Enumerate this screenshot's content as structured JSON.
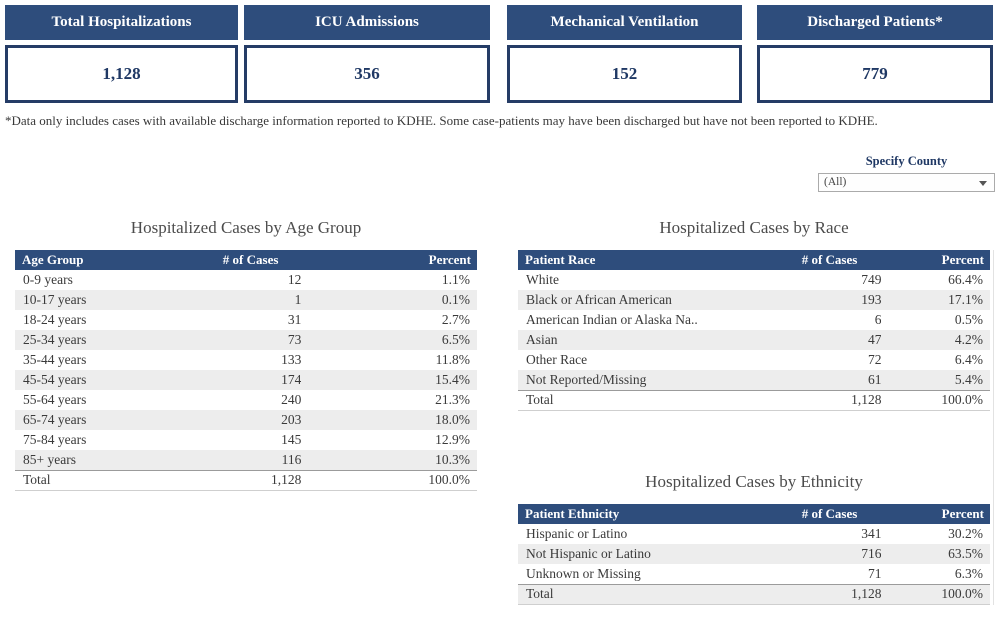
{
  "kpis": [
    {
      "label": "Total Hospitalizations",
      "value": "1,128"
    },
    {
      "label": "ICU Admissions",
      "value": "356"
    },
    {
      "label": "Mechanical Ventilation",
      "value": "152"
    },
    {
      "label": "Discharged Patients*",
      "value": "779"
    }
  ],
  "footnote": "*Data only includes cases with available discharge information reported to KDHE. Some case-patients may have been discharged but have not been reported to KDHE.",
  "county_filter": {
    "label": "Specify County",
    "selected": "(All)"
  },
  "tables": {
    "age": {
      "title": "Hospitalized Cases by Age Group",
      "columns": [
        "Age Group",
        "# of Cases",
        "Percent"
      ],
      "rows": [
        [
          "0-9 years",
          "12",
          "1.1%"
        ],
        [
          "10-17 years",
          "1",
          "0.1%"
        ],
        [
          "18-24 years",
          "31",
          "2.7%"
        ],
        [
          "25-34 years",
          "73",
          "6.5%"
        ],
        [
          "35-44 years",
          "133",
          "11.8%"
        ],
        [
          "45-54 years",
          "174",
          "15.4%"
        ],
        [
          "55-64 years",
          "240",
          "21.3%"
        ],
        [
          "65-74 years",
          "203",
          "18.0%"
        ],
        [
          "75-84 years",
          "145",
          "12.9%"
        ],
        [
          "85+ years",
          "116",
          "10.3%"
        ]
      ],
      "total": [
        "Total",
        "1,128",
        "100.0%"
      ]
    },
    "race": {
      "title": "Hospitalized Cases by Race",
      "columns": [
        "Patient Race",
        "# of Cases",
        "Percent"
      ],
      "rows": [
        [
          "White",
          "749",
          "66.4%"
        ],
        [
          "Black or African American",
          "193",
          "17.1%"
        ],
        [
          "American Indian or Alaska Na..",
          "6",
          "0.5%"
        ],
        [
          "Asian",
          "47",
          "4.2%"
        ],
        [
          "Other Race",
          "72",
          "6.4%"
        ],
        [
          "Not Reported/Missing",
          "61",
          "5.4%"
        ]
      ],
      "total": [
        "Total",
        "1,128",
        "100.0%"
      ]
    },
    "ethnicity": {
      "title": "Hospitalized Cases by Ethnicity",
      "columns": [
        "Patient Ethnicity",
        "# of Cases",
        "Percent"
      ],
      "rows": [
        [
          "Hispanic or Latino",
          "341",
          "30.2%"
        ],
        [
          "Not Hispanic or Latino",
          "716",
          "63.5%"
        ],
        [
          "Unknown or Missing",
          "71",
          "6.3%"
        ]
      ],
      "total": [
        "Total",
        "1,128",
        "100.0%"
      ]
    }
  },
  "colors": {
    "header_blue": "#2e4d7c",
    "kpi_border": "#253c66",
    "value_navy": "#1f3864",
    "alt_row": "#ededed",
    "body_text": "#3a3a3a"
  }
}
